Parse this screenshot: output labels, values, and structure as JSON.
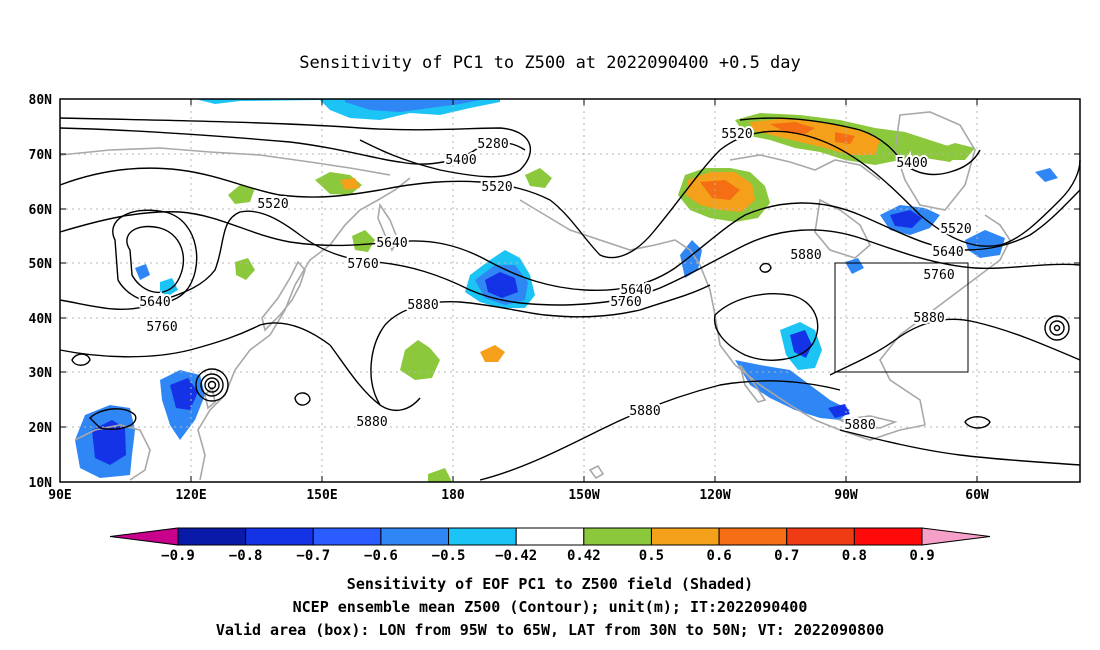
{
  "title": "Sensitivity of PC1 to Z500 at 2022090400 +0.5 day",
  "lon_labels": [
    "90E",
    "120E",
    "150E",
    "180",
    "150W",
    "120W",
    "90W",
    "60W"
  ],
  "lat_labels": [
    "80N",
    "70N",
    "60N",
    "50N",
    "40N",
    "30N",
    "20N",
    "10N"
  ],
  "contour_labels": [
    "5280",
    "5400",
    "5520",
    "5520",
    "5520",
    "5400",
    "5520",
    "5640",
    "5640",
    "5640",
    "5640",
    "5760",
    "5760",
    "5760",
    "5760",
    "5880",
    "5880",
    "5880",
    "5880",
    "5880",
    "5880"
  ],
  "colorbar": {
    "labels": [
      "−0.9",
      "−0.8",
      "−0.7",
      "−0.6",
      "−0.5",
      "−0.42",
      "0.42",
      "0.5",
      "0.6",
      "0.7",
      "0.8",
      "0.9"
    ],
    "colors": [
      "#c8008c",
      "#0a1aa8",
      "#1432e6",
      "#2a5cff",
      "#2f86f5",
      "#1cc4f5",
      "#ffffff",
      "#8cc83c",
      "#f5a01a",
      "#f56e14",
      "#f03c14",
      "#ff0a0a",
      "#f5a0c8"
    ]
  },
  "footer": [
    "Sensitivity of EOF PC1 to Z500 field (Shaded)",
    "NCEP ensemble mean Z500 (Contour); unit(m); IT:2022090400",
    "Valid area (box): LON from 95W to 65W, LAT from 30N to 50N; VT: 2022090800"
  ]
}
